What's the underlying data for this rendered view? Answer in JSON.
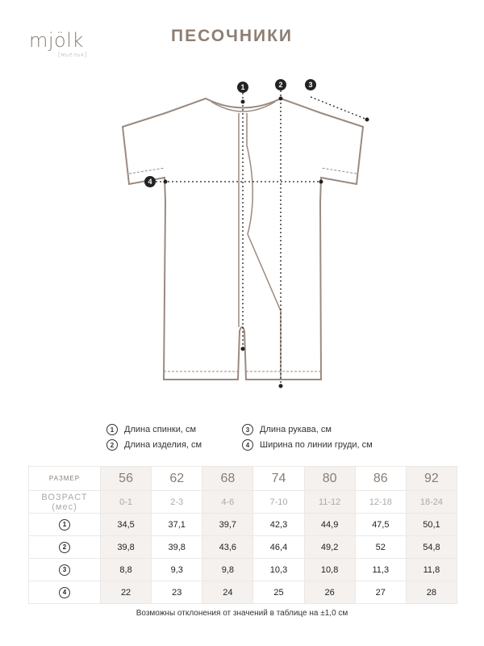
{
  "logo": {
    "text": "mjölk",
    "sub": "[мьёльк]"
  },
  "title": "ПЕСОЧНИКИ",
  "legend": [
    {
      "num": "1",
      "label": "Длина спинки, см"
    },
    {
      "num": "2",
      "label": "Длина изделия, см"
    },
    {
      "num": "3",
      "label": "Длина рукава, см"
    },
    {
      "num": "4",
      "label": "Ширина по линии груди, см"
    }
  ],
  "table": {
    "size_label": "РАЗМЕР",
    "age_label": "ВОЗРАСТ",
    "age_unit": "(мес)",
    "sizes": [
      "56",
      "62",
      "68",
      "74",
      "80",
      "86",
      "92"
    ],
    "ages": [
      "0-1",
      "2-3",
      "4-6",
      "7-10",
      "11-12",
      "12-18",
      "18-24"
    ],
    "rows": [
      {
        "num": "1",
        "values": [
          "34,5",
          "37,1",
          "39,7",
          "42,3",
          "44,9",
          "47,5",
          "50,1"
        ]
      },
      {
        "num": "2",
        "values": [
          "39,8",
          "39,8",
          "43,6",
          "46,4",
          "49,2",
          "52",
          "54,8"
        ]
      },
      {
        "num": "3",
        "values": [
          "8,8",
          "9,3",
          "9,8",
          "10,3",
          "10,8",
          "11,3",
          "11,8"
        ]
      },
      {
        "num": "4",
        "values": [
          "22",
          "23",
          "24",
          "25",
          "26",
          "27",
          "28"
        ]
      }
    ]
  },
  "footnote": "Возможны отклонения от значений в таблице на ±1,0 см",
  "colors": {
    "accent": "#8d7e73",
    "garment_outline": "#9a8a80",
    "shade": "#f4f1ef"
  }
}
